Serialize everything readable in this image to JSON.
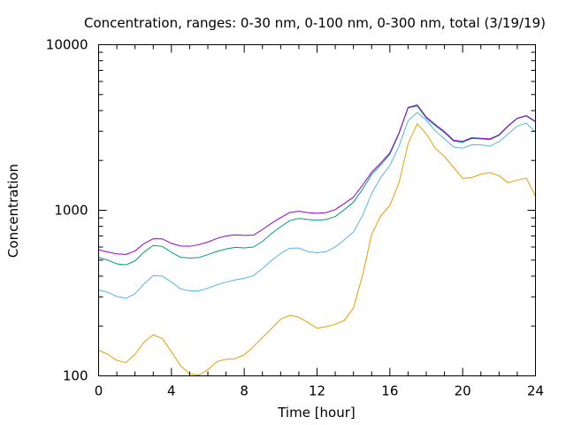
{
  "chart_data": {
    "type": "line",
    "title": "Concentration, ranges: 0-30 nm, 0-100 nm, 0-300 nm, total (3/19/19)",
    "xlabel": "Time [hour]",
    "ylabel": "Concentration",
    "xlim": [
      0,
      24
    ],
    "ylim": [
      100,
      10000
    ],
    "yscale": "log",
    "grid": false,
    "x_ticks": [
      0,
      4,
      8,
      12,
      16,
      20,
      24
    ],
    "x_tick_labels": [
      "0",
      "4",
      "8",
      "12",
      "16",
      "20",
      "24"
    ],
    "y_ticks": [
      100,
      1000,
      10000
    ],
    "y_tick_labels": [
      "100",
      "1000",
      "10000"
    ],
    "x": [
      0,
      0.5,
      1,
      1.5,
      2,
      2.5,
      3,
      3.5,
      4,
      4.5,
      5,
      5.5,
      6,
      6.5,
      7,
      7.5,
      8,
      8.5,
      9,
      9.5,
      10,
      10.5,
      11,
      11.5,
      12,
      12.5,
      13,
      13.5,
      14,
      14.5,
      15,
      15.5,
      16,
      16.5,
      17,
      17.5,
      18,
      18.5,
      19,
      19.5,
      20,
      20.5,
      21,
      21.5,
      22,
      22.5,
      23,
      23.5,
      24
    ],
    "series": [
      {
        "color": "#e69f00",
        "values": [
          143,
          135,
          124,
          120,
          135,
          160,
          177,
          168,
          140,
          115,
          103,
          101,
          109,
          122,
          126,
          127,
          134,
          150,
          170,
          193,
          220,
          232,
          226,
          210,
          194,
          198,
          205,
          216,
          257,
          405,
          714,
          926,
          1070,
          1463,
          2520,
          3330,
          2900,
          2367,
          2107,
          1814,
          1559,
          1576,
          1652,
          1690,
          1615,
          1466,
          1521,
          1565,
          1216
        ]
      },
      {
        "color": "#56b4e9",
        "values": [
          330,
          320,
          302,
          294,
          313,
          360,
          403,
          400,
          369,
          335,
          326,
          326,
          338,
          355,
          368,
          380,
          388,
          403,
          445,
          498,
          548,
          590,
          592,
          563,
          554,
          563,
          600,
          664,
          740,
          930,
          1260,
          1580,
          1860,
          2440,
          3470,
          3900,
          3500,
          3014,
          2700,
          2417,
          2374,
          2488,
          2483,
          2443,
          2599,
          2896,
          3228,
          3357,
          2972
        ]
      },
      {
        "color": "#009e73",
        "values": [
          520,
          500,
          475,
          468,
          495,
          560,
          613,
          605,
          558,
          520,
          514,
          518,
          540,
          565,
          584,
          597,
          593,
          600,
          648,
          725,
          795,
          866,
          894,
          880,
          870,
          880,
          917,
          1010,
          1120,
          1340,
          1650,
          1880,
          2180,
          2900,
          4150,
          4270,
          3600,
          3240,
          2946,
          2617,
          2575,
          2715,
          2700,
          2672,
          2833,
          3220,
          3584,
          3710,
          3413
        ]
      },
      {
        "color": "#9400d3",
        "values": [
          578,
          560,
          545,
          541,
          568,
          630,
          673,
          672,
          631,
          608,
          606,
          620,
          643,
          676,
          700,
          711,
          705,
          707,
          765,
          836,
          903,
          970,
          986,
          968,
          960,
          968,
          1010,
          1099,
          1200,
          1420,
          1700,
          1930,
          2220,
          2930,
          4180,
          4330,
          3660,
          3290,
          2990,
          2650,
          2610,
          2740,
          2720,
          2700,
          2860,
          3240,
          3600,
          3730,
          3440
        ]
      }
    ]
  }
}
